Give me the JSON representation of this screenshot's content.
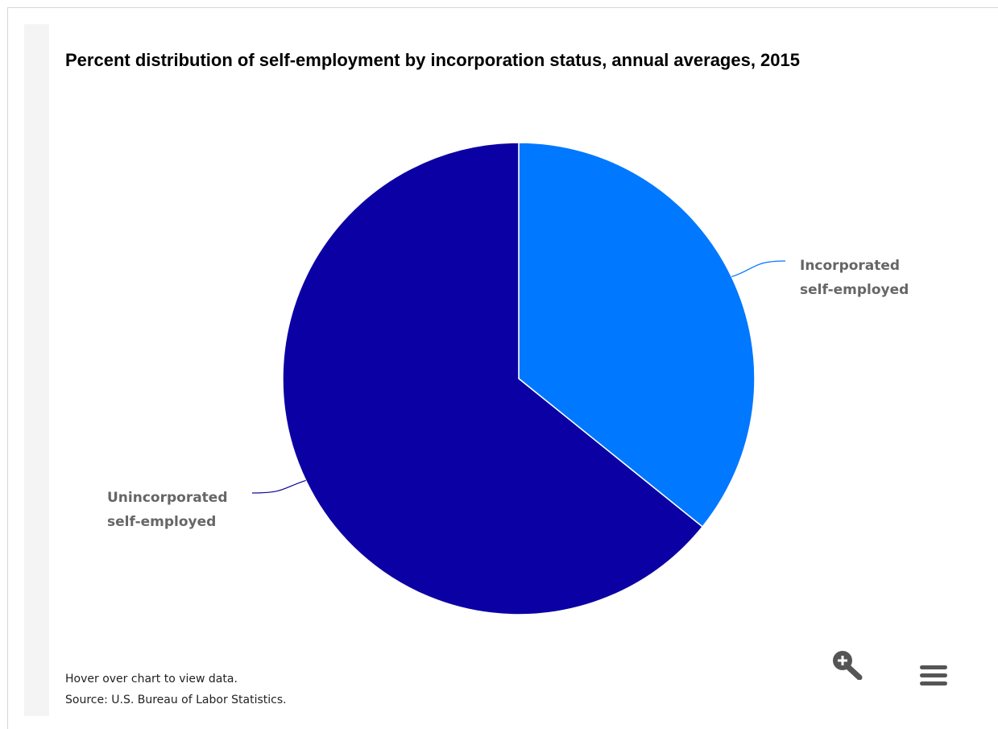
{
  "chart_data": {
    "type": "pie",
    "title": "Percent distribution of self-employment by incorporation status, annual averages, 2015",
    "slices": [
      {
        "label_lines": [
          "Incorporated",
          "self-employed"
        ],
        "value": 35.8,
        "color": "#0078ff"
      },
      {
        "label_lines": [
          "Unincorporated",
          "self-employed"
        ],
        "value": 64.2,
        "color": "#0b00a3"
      }
    ],
    "legend": "none"
  },
  "footer": {
    "hover_note": "Hover over chart to view data.",
    "source": "Source: U.S. Bureau of Labor Statistics."
  },
  "controls": {
    "zoom_icon": "zoom-in-icon",
    "menu_icon": "hamburger-menu-icon",
    "icon_color": "#555555"
  }
}
